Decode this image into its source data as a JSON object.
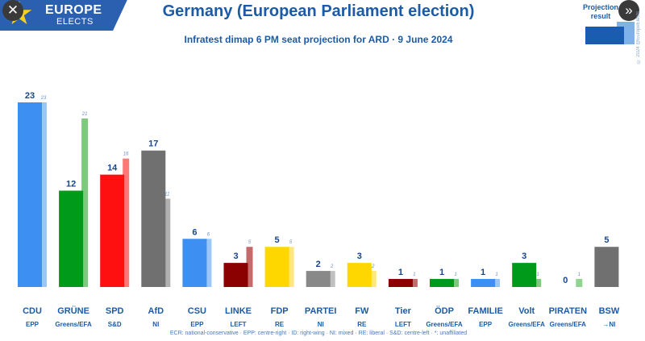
{
  "brand": {
    "line1": "EUROPE",
    "line2": "ELECTS"
  },
  "controls": {
    "close": "✕",
    "next": "»"
  },
  "header": {
    "title": "Germany (European Parliament election)",
    "subtitle": "Infratest dimap 6 PM seat projection for ARD · 9 June 2024"
  },
  "legend": {
    "label": "Projection result",
    "credit": "© 2024 @EuropeElects"
  },
  "footnote": "ECR: national-conservative · EPP: centre-right · ID: right-wing · NI: mixed · RE: liberal · S&D: centre-left · *: unaffiliated",
  "chart_data": {
    "type": "bar",
    "categories": [
      "CDU",
      "GRÜNE",
      "SPD",
      "AfD",
      "CSU",
      "LINKE",
      "FDP",
      "PARTEI",
      "FW",
      "Tier",
      "ÖDP",
      "FAMILIE",
      "Volt",
      "PIRATEN",
      "BSW"
    ],
    "groups": [
      "EPP",
      "Greens/EFA",
      "S&D",
      "NI",
      "EPP",
      "LEFT",
      "RE",
      "NI",
      "RE",
      "LEFT",
      "Greens/EFA",
      "EPP",
      "Greens/EFA",
      "Greens/EFA",
      "→NI"
    ],
    "series": [
      {
        "name": "Projection",
        "values": [
          23,
          12,
          14,
          17,
          6,
          3,
          5,
          2,
          3,
          1,
          1,
          1,
          3,
          0,
          5
        ]
      },
      {
        "name": "Result",
        "values": [
          23,
          21,
          16,
          11,
          6,
          5,
          5,
          2,
          2,
          1,
          1,
          1,
          1,
          1,
          null
        ]
      }
    ],
    "colors": [
      "#3d8ff2",
      "#009a1a",
      "#ff1010",
      "#707070",
      "#3d8ff2",
      "#8b0000",
      "#ffd700",
      "#888888",
      "#ffd700",
      "#8b0000",
      "#009a1a",
      "#3d8ff2",
      "#009a1a",
      "#3aab3a",
      "#707070"
    ],
    "result_colors": [
      "#9ac7f7",
      "#7fc97f",
      "#ff7878",
      "#b0b0b0",
      "#9ac7f7",
      "#c46a6a",
      "#ffe680",
      "#c0c0c0",
      "#ffe680",
      "#c46a6a",
      "#7fc97f",
      "#9ac7f7",
      "#7fc97f",
      "#8fd48f",
      null
    ],
    "ylim": [
      0,
      23
    ],
    "grid": false,
    "legend": "top-right"
  }
}
